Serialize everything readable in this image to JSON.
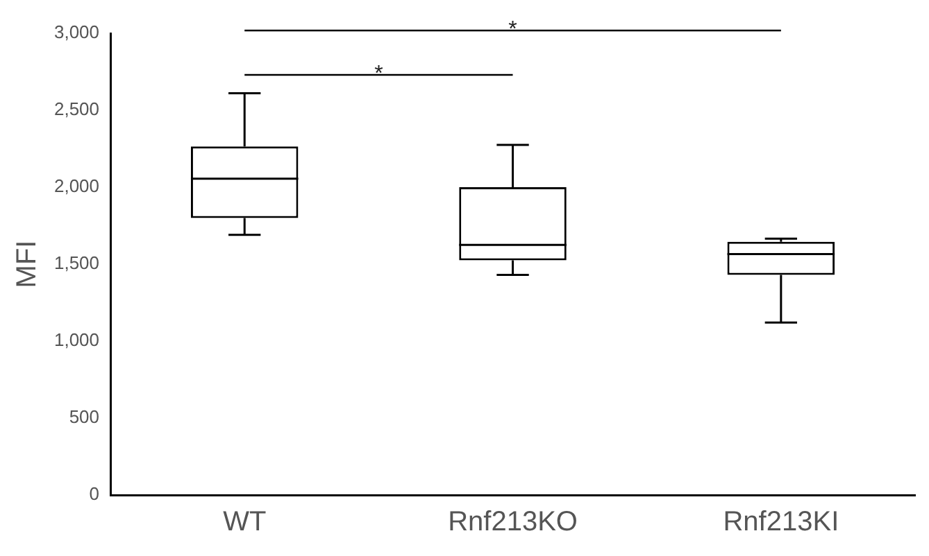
{
  "chart_data": {
    "type": "box",
    "ylabel": "MFI",
    "categories": [
      "WT",
      "Rnf213KO",
      "Rnf213KI"
    ],
    "boxes": [
      {
        "low": 1690,
        "q1": 1800,
        "median": 2055,
        "q3": 2265,
        "high": 2610
      },
      {
        "low": 1430,
        "q1": 1525,
        "median": 1625,
        "q3": 2000,
        "high": 2275
      },
      {
        "low": 1120,
        "q1": 1430,
        "median": 1565,
        "q3": 1645,
        "high": 1665
      }
    ],
    "color": "#000000",
    "ylim": [
      0,
      3000
    ],
    "yticks": [
      0,
      500,
      {
        "value": 1000,
        "label": "1,000"
      },
      {
        "value": 1500,
        "label": "1,500"
      },
      {
        "value": 2000,
        "label": "2,000"
      },
      {
        "value": 2500,
        "label": "2,500"
      },
      {
        "value": 3000,
        "label": "3,000"
      }
    ],
    "grid": false,
    "legend": false,
    "annotations": [
      "*",
      "*"
    ]
  }
}
